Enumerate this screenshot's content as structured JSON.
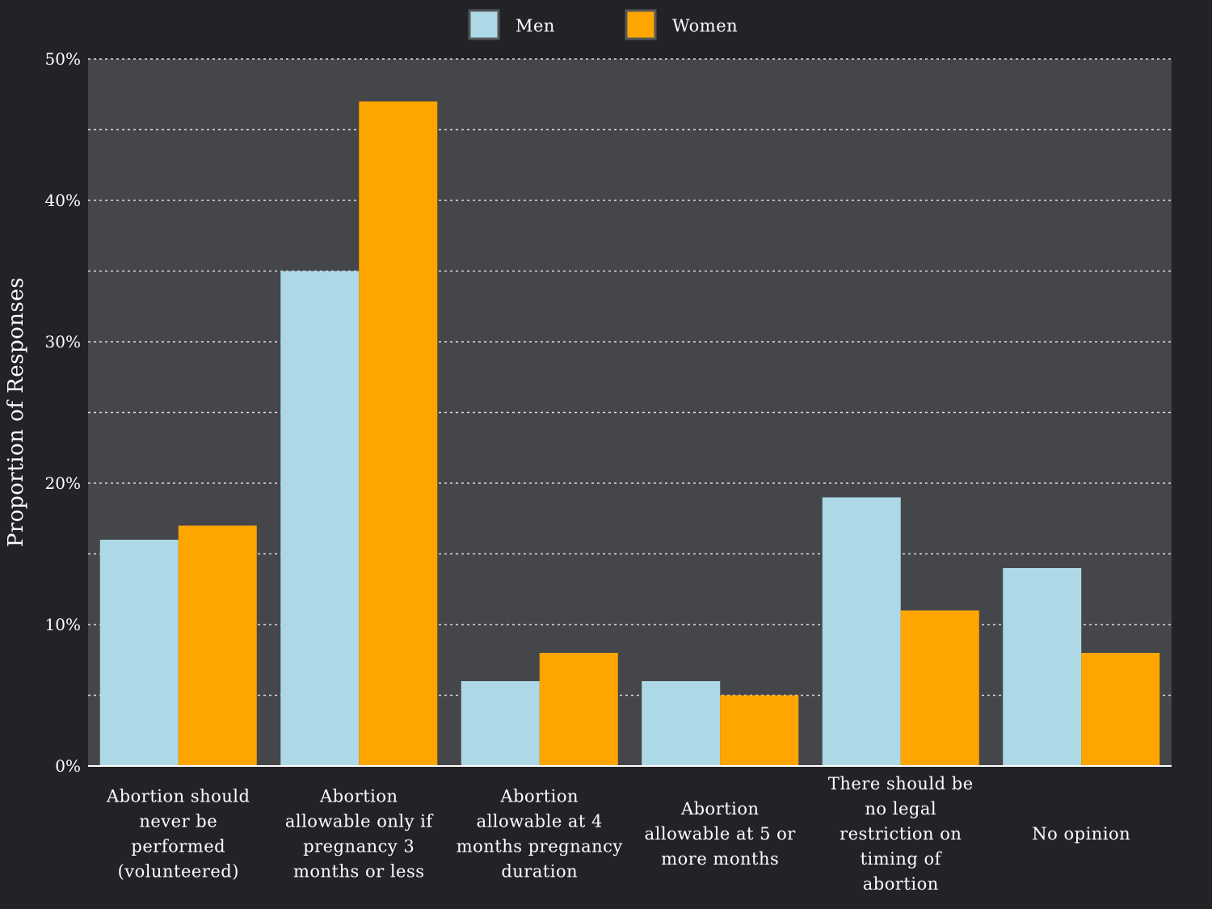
{
  "chart_data": {
    "type": "bar",
    "ylabel": "Proportion of Responses",
    "xlabel": "",
    "ylim": [
      0,
      50
    ],
    "y_ticks": [
      "0%",
      "10%",
      "20%",
      "30%",
      "40%",
      "50%"
    ],
    "grid": true,
    "legend_position": "top-center",
    "categories": [
      [
        "Abortion should",
        "never be",
        "performed",
        "(volunteered)"
      ],
      [
        "Abortion",
        "allowable only if",
        "pregnancy 3",
        "months or less"
      ],
      [
        "Abortion",
        "allowable at 4",
        "months pregnancy",
        "duration"
      ],
      [
        "Abortion",
        "allowable at 5 or",
        "more months"
      ],
      [
        "There should be",
        "no legal",
        "restriction on",
        "timing of",
        "abortion"
      ],
      [
        "No opinion"
      ]
    ],
    "series": [
      {
        "name": "Men",
        "color": "#add8e6",
        "values": [
          16,
          35,
          6,
          6,
          19,
          14
        ]
      },
      {
        "name": "Women",
        "color": "#ffa500",
        "values": [
          17,
          47,
          8,
          5,
          11,
          8
        ]
      }
    ]
  },
  "colors": {
    "background": "#222326",
    "plot_background": "#454649",
    "grid": "#dddddd"
  }
}
